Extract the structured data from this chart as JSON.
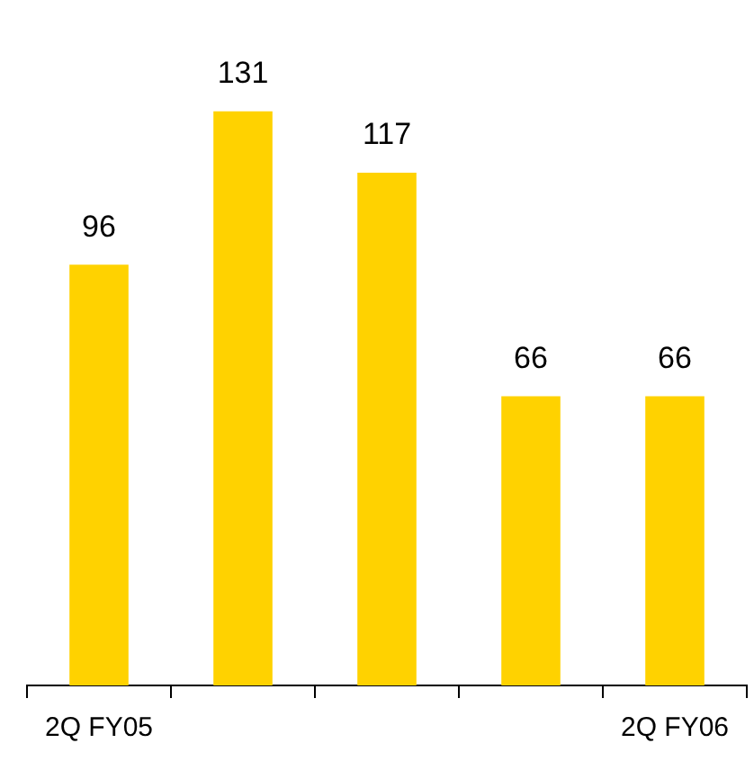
{
  "chart_data": {
    "type": "bar",
    "categories": [
      "2Q FY05",
      null,
      null,
      null,
      "2Q FY06"
    ],
    "values": [
      96,
      131,
      117,
      66,
      66
    ],
    "color": "#ffd200",
    "data_labels": true,
    "grid": false,
    "legend": false
  }
}
